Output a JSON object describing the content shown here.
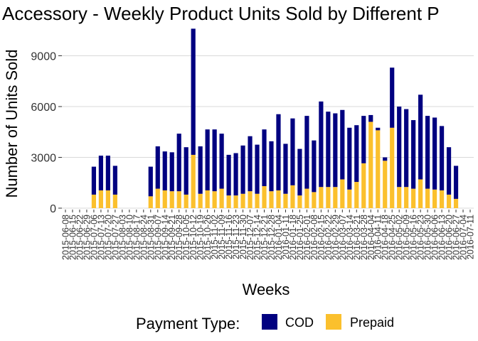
{
  "chart_data": {
    "type": "bar",
    "stacked": true,
    "title": "Accessory - Weekly Product Units Sold by Different P",
    "xlabel": "Weeks",
    "ylabel": "Number of Units Sold",
    "ylim": [
      0,
      10700
    ],
    "yticks": [
      0,
      3000,
      6000,
      9000
    ],
    "ytick_labels": [
      "0",
      "3000",
      "6000",
      "9000"
    ],
    "grid": "horizontal",
    "legend_position": "bottom",
    "legend_title": "Payment Type:",
    "categories": [
      "2015-06-08",
      "2015-06-15",
      "2015-06-22",
      "2015-06-29",
      "2015-07-06",
      "2015-07-13",
      "2015-07-20",
      "2015-07-27",
      "2015-08-03",
      "2015-08-10",
      "2015-08-17",
      "2015-08-24",
      "2015-08-31",
      "2015-09-07",
      "2015-09-14",
      "2015-09-21",
      "2015-09-28",
      "2015-10-05",
      "2015-10-12",
      "2015-10-19",
      "2015-10-26",
      "2015-11-02",
      "2015-11-09",
      "2015-11-16",
      "2015-11-23",
      "2015-11-30",
      "2015-12-07",
      "2015-12-14",
      "2015-12-21",
      "2015-12-28",
      "2016-01-04",
      "2016-01-11",
      "2016-01-18",
      "2016-01-25",
      "2016-02-01",
      "2016-02-08",
      "2016-02-15",
      "2016-02-22",
      "2016-02-29",
      "2016-03-07",
      "2016-03-14",
      "2016-03-21",
      "2016-03-28",
      "2016-04-04",
      "2016-04-11",
      "2016-04-18",
      "2016-04-25",
      "2016-05-02",
      "2016-05-09",
      "2016-05-16",
      "2016-05-23",
      "2016-05-30",
      "2016-06-06",
      "2016-06-13",
      "2016-06-20",
      "2016-06-27",
      "2016-07-04",
      "2016-07-11"
    ],
    "series": [
      {
        "name": "Prepaid",
        "color": "#FBC02D",
        "values": [
          0,
          0,
          0,
          0,
          800,
          1050,
          1050,
          800,
          0,
          0,
          0,
          0,
          700,
          1150,
          1050,
          1000,
          1000,
          800,
          3150,
          850,
          1050,
          1000,
          1150,
          750,
          750,
          850,
          1000,
          850,
          1300,
          1000,
          1050,
          850,
          1350,
          750,
          1150,
          950,
          1250,
          1250,
          1250,
          1700,
          1100,
          1550,
          2650,
          5100,
          4600,
          2800,
          4750,
          1250,
          1250,
          1150,
          1700,
          1150,
          1100,
          1050,
          800,
          550,
          0,
          0
        ]
      },
      {
        "name": "COD",
        "color": "#000080",
        "values": [
          0,
          0,
          0,
          0,
          1650,
          2050,
          2050,
          1700,
          0,
          0,
          0,
          0,
          1750,
          2500,
          2300,
          2300,
          3400,
          2800,
          7450,
          2800,
          3600,
          3650,
          3250,
          2400,
          2500,
          2850,
          3250,
          2900,
          3350,
          2950,
          4500,
          2950,
          3950,
          2750,
          4300,
          3050,
          5050,
          4450,
          4350,
          4100,
          3650,
          3350,
          2800,
          400,
          150,
          200,
          3550,
          4750,
          4600,
          4050,
          5000,
          4300,
          4250,
          3800,
          2800,
          1950,
          0,
          0
        ]
      }
    ]
  }
}
